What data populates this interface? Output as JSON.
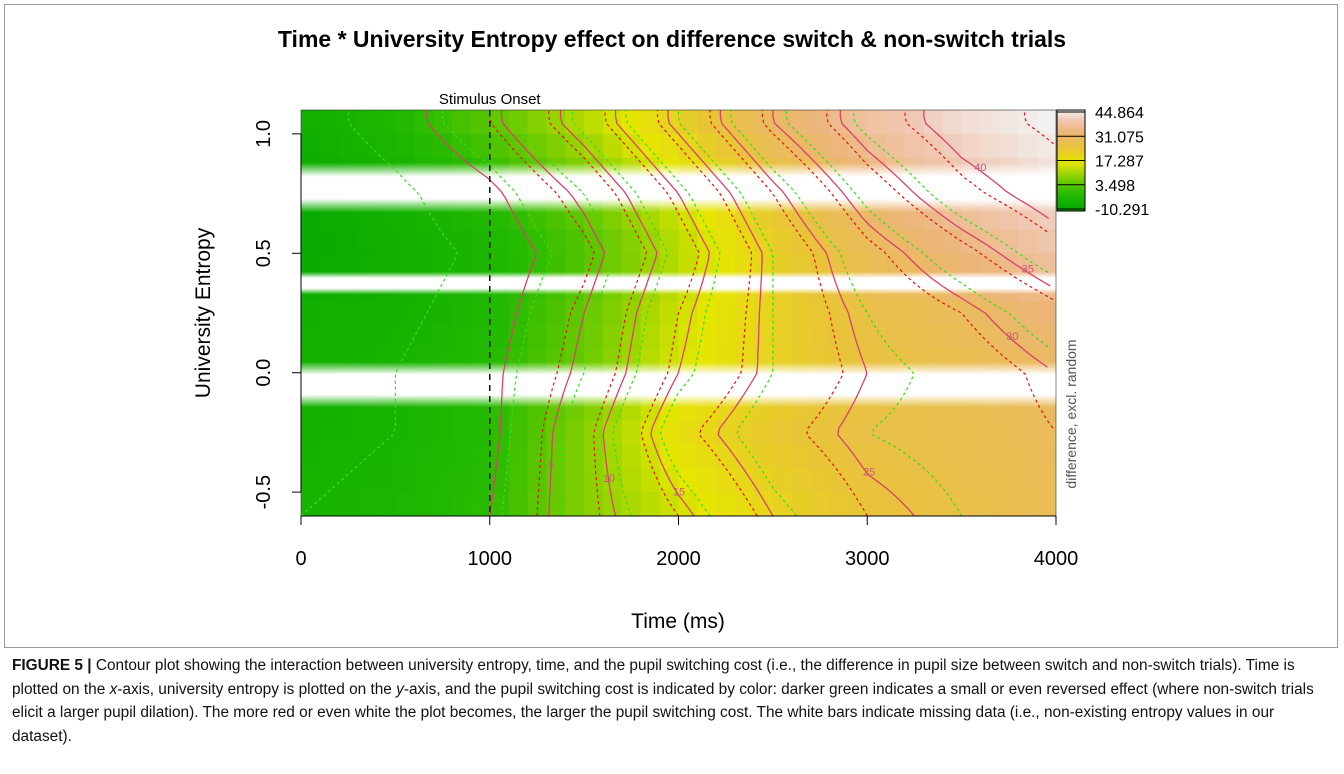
{
  "chart_data": {
    "type": "heatmap",
    "title": "Time * University Entropy effect on difference switch & non-switch trials",
    "xlabel": "Time (ms)",
    "ylabel": "University Entropy",
    "right_label": "difference, excl. random",
    "xlim": [
      0,
      4000
    ],
    "ylim": [
      -0.6,
      1.1
    ],
    "x_ticks": [
      "0",
      "1000",
      "2000",
      "3000",
      "4000"
    ],
    "y_ticks": [
      "-0.5",
      "0.0",
      "0.5",
      "1.0"
    ],
    "vline": {
      "x": 1000,
      "label": "Stimulus Onset"
    },
    "colorbar": {
      "labels": [
        "44.864",
        "31.075",
        "17.287",
        "3.498",
        "-10.291"
      ],
      "min": -10.291,
      "max": 44.864
    },
    "z_surface": {
      "x": [
        0,
        500,
        1000,
        1500,
        2000,
        2500,
        3000,
        3500,
        4000
      ],
      "y": [
        -0.6,
        -0.25,
        0.0,
        0.25,
        0.5,
        0.75,
        1.05
      ],
      "z": [
        [
          -4,
          -3,
          0,
          8,
          14,
          20,
          24,
          26,
          28
        ],
        [
          -5,
          -4,
          -1,
          8,
          18,
          23,
          26,
          27,
          29
        ],
        [
          -5,
          -4,
          -1,
          6,
          15,
          21,
          25,
          27,
          30
        ],
        [
          -6,
          -5,
          -2,
          5,
          14,
          21,
          26,
          29,
          33
        ],
        [
          -8,
          -6,
          -3,
          3,
          12,
          21,
          28,
          33,
          38
        ],
        [
          -8,
          -5,
          -1,
          6,
          15,
          24,
          32,
          38,
          42
        ],
        [
          -6,
          -2,
          4,
          12,
          21,
          30,
          37,
          42,
          45
        ]
      ]
    },
    "missing_bands": [
      [
        -0.1,
        0.0
      ],
      [
        0.35,
        0.4
      ],
      [
        0.72,
        0.83
      ]
    ],
    "contour_levels": [
      0,
      5,
      10,
      15,
      20,
      25,
      30,
      35,
      40
    ],
    "contour_labels": [
      "0",
      "5",
      "10",
      "15",
      "25",
      "30",
      "35",
      "40"
    ],
    "contour_colors": {
      "fit": "#d9416b",
      "ci_upper": "#e81010",
      "ci_lower": "#33e01f"
    }
  },
  "caption": {
    "label": "FIGURE 5",
    "separator": "|",
    "text_parts": [
      "Contour plot showing the interaction between university entropy, time, and the pupil switching cost (i.e., the difference in pupil size between switch and non-switch trials). Time is plotted on the ",
      "x",
      "-axis, university entropy is plotted on the ",
      "y",
      "-axis, and the pupil switching cost is indicated by color: darker green indicates a small or even reversed effect (where non-switch trials elicit a larger pupil dilation). The more red or even white the plot becomes, the larger the pupil switching cost. The white bars indicate missing data (i.e., non-existing entropy values in our dataset)."
    ]
  }
}
